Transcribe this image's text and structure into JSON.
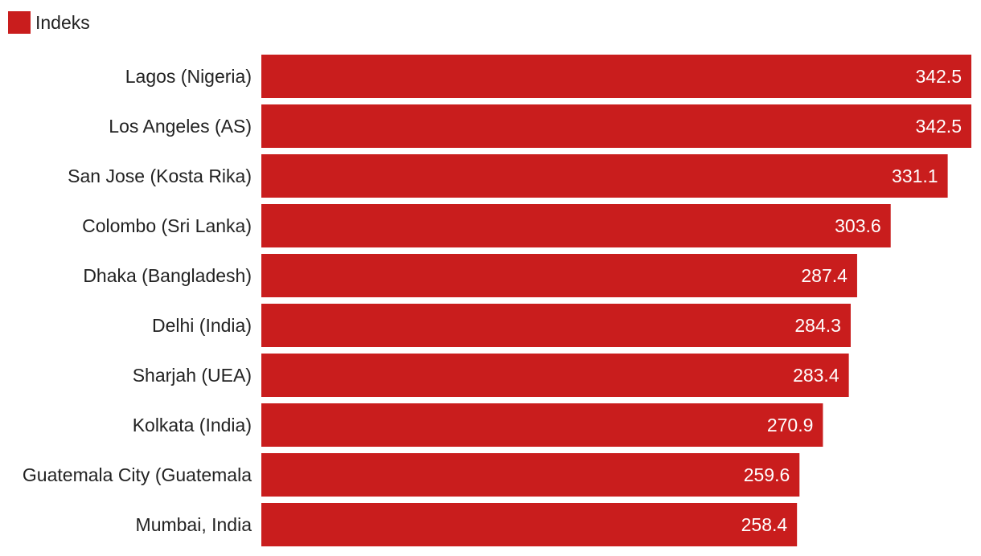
{
  "chart_data": {
    "type": "bar",
    "orientation": "horizontal",
    "categories": [
      "Lagos (Nigeria)",
      "Los Angeles (AS)",
      "San Jose (Kosta Rika)",
      "Colombo (Sri Lanka)",
      "Dhaka (Bangladesh)",
      "Delhi (India)",
      "Sharjah (UEA)",
      "Kolkata (India)",
      "Guatemala City (Guatemala",
      "Mumbai, India"
    ],
    "series": [
      {
        "name": "Indeks",
        "values": [
          342.5,
          342.5,
          331.1,
          303.6,
          287.4,
          284.3,
          283.4,
          270.9,
          259.6,
          258.4
        ],
        "color": "#c91d1d"
      }
    ],
    "value_labels": [
      "342.5",
      "342.5",
      "331.1",
      "303.6",
      "287.4",
      "284.3",
      "283.4",
      "270.9",
      "259.6",
      "258.4"
    ],
    "xlim": [
      0,
      342.5
    ],
    "grid": false,
    "legend_position": "top-left"
  }
}
